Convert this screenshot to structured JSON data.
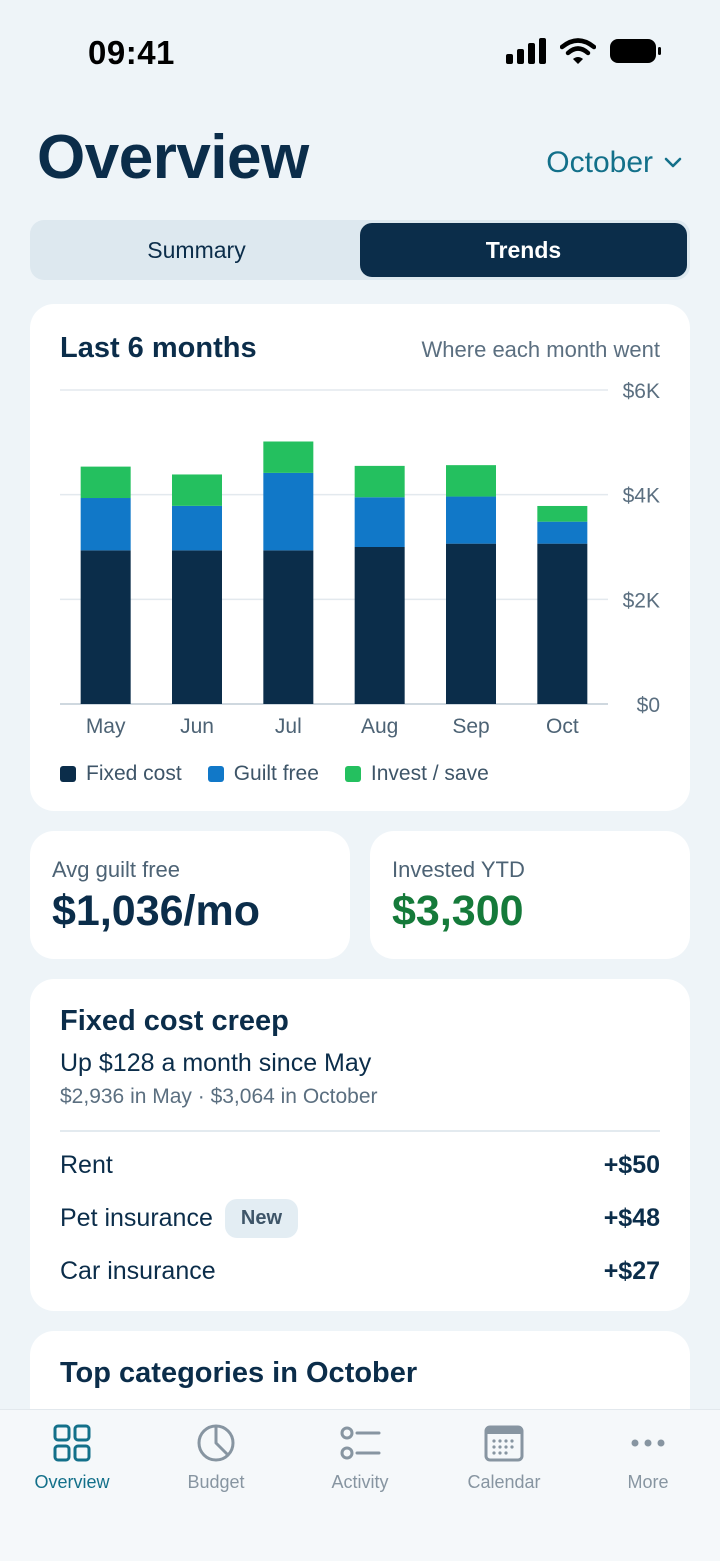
{
  "status_bar": {
    "time": "09:41"
  },
  "header": {
    "title": "Overview",
    "month": "October"
  },
  "segments": [
    {
      "label": "Summary",
      "active": false
    },
    {
      "label": "Trends",
      "active": true
    }
  ],
  "chart_card": {
    "title": "Last 6 months",
    "subtitle": "Where each month went"
  },
  "chart_data": {
    "type": "bar",
    "stacked": true,
    "categories": [
      "May",
      "Jun",
      "Jul",
      "Aug",
      "Sep",
      "Oct"
    ],
    "series": [
      {
        "name": "Fixed cost",
        "color": "#0b2d4a",
        "values": [
          2936,
          2936,
          2936,
          3000,
          3064,
          3064
        ]
      },
      {
        "name": "Guilt free",
        "color": "#1178c8",
        "values": [
          1000,
          850,
          1480,
          950,
          900,
          420
        ]
      },
      {
        "name": "Invest / save",
        "color": "#24c05f",
        "values": [
          600,
          600,
          600,
          600,
          600,
          300
        ]
      }
    ],
    "y_ticks": [
      "$0",
      "$2K",
      "$4K",
      "$6K"
    ],
    "ylim": [
      0,
      6000
    ],
    "grid": true,
    "legend": "bottom"
  },
  "stats": {
    "avg_guilt_free": {
      "label": "Avg guilt free",
      "value": "$1,036/mo"
    },
    "invested_ytd": {
      "label": "Invested YTD",
      "value": "$3,300",
      "color": "#157a3a"
    }
  },
  "creep": {
    "title": "Fixed cost creep",
    "headline": "Up $128 a month since May",
    "detail": "$2,936 in May · $3,064 in October",
    "rows": [
      {
        "label": "Rent",
        "badge": "",
        "amount": "+$50"
      },
      {
        "label": "Pet insurance",
        "badge": "New",
        "amount": "+$48"
      },
      {
        "label": "Car insurance",
        "badge": "",
        "amount": "+$27"
      }
    ]
  },
  "top_categories": {
    "title": "Top categories in October"
  },
  "tabs": [
    {
      "label": "Overview",
      "icon": "grid-icon",
      "active": true
    },
    {
      "label": "Budget",
      "icon": "pie-icon",
      "active": false
    },
    {
      "label": "Activity",
      "icon": "list-icon",
      "active": false
    },
    {
      "label": "Calendar",
      "icon": "calendar-icon",
      "active": false
    },
    {
      "label": "More",
      "icon": "more-icon",
      "active": false
    }
  ]
}
